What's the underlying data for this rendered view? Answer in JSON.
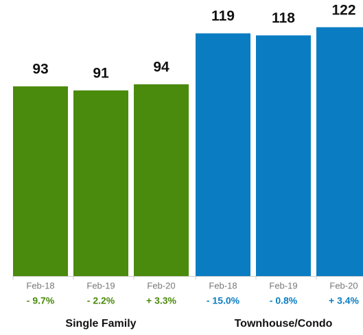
{
  "chart_data": {
    "type": "bar",
    "ylim": [
      0,
      135
    ],
    "groups": [
      {
        "name": "Single Family",
        "color": "#4a8a0c",
        "categories": [
          "Feb-18",
          "Feb-19",
          "Feb-20"
        ],
        "values": [
          93,
          91,
          94
        ],
        "change_labels": [
          "- 9.7%",
          "- 2.2%",
          "+ 3.3%"
        ]
      },
      {
        "name": "Townhouse/Condo",
        "color": "#0a7dc2",
        "categories": [
          "Feb-18",
          "Feb-19",
          "Feb-20"
        ],
        "values": [
          119,
          118,
          122
        ],
        "change_labels": [
          "- 15.0%",
          "- 0.8%",
          "+ 3.4%"
        ]
      }
    ]
  }
}
